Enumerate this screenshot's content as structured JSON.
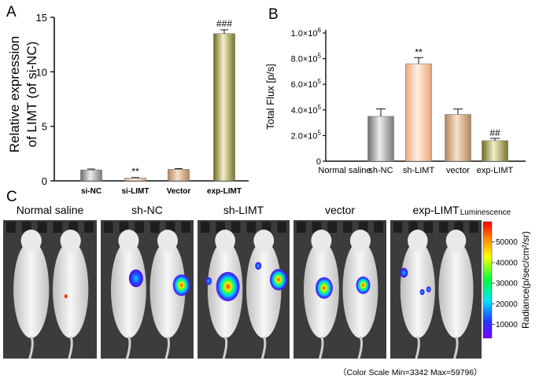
{
  "chart_data": [
    {
      "panel": "A",
      "type": "bar",
      "categories": [
        "si-NC",
        "si-LIMT",
        "Vector",
        "exp-LIMT"
      ],
      "values": [
        1.0,
        0.25,
        1.05,
        13.5
      ],
      "errors": [
        0.08,
        0.05,
        0.07,
        0.35
      ],
      "significance": [
        "",
        "**",
        "",
        "###"
      ],
      "colors": [
        "#a8a8a8",
        "#f4c7a6",
        "#d9b089",
        "#a7a24a"
      ],
      "ylabel_line1": "Relative  expression",
      "ylabel_line2": "of LIMT (of si-NC)",
      "ylim": [
        0,
        15
      ],
      "yticks": [
        "0",
        "5",
        "10",
        "15"
      ]
    },
    {
      "panel": "B",
      "type": "bar",
      "categories": [
        "Normal saline",
        "sh-NC",
        "sh-LIMT",
        "vector",
        "exp-LIMT"
      ],
      "values": [
        0,
        350000,
        760000,
        365000,
        160000
      ],
      "errors": [
        0,
        58000,
        48000,
        42000,
        18000
      ],
      "significance": [
        "",
        "",
        "**",
        "",
        "##"
      ],
      "colors": [
        "#ffffff",
        "#a3a3a3",
        "#f2b584",
        "#c99d72",
        "#a49e47"
      ],
      "ylabel": "Total Flux [p/s]",
      "ylim": [
        0,
        1000000
      ],
      "ytick_values": [
        0,
        200000,
        400000,
        600000,
        800000,
        1000000
      ],
      "ytick_labels": [
        {
          "m": "0",
          "e": ""
        },
        {
          "m": "2.0×10",
          "e": "5"
        },
        {
          "m": "4.0×10",
          "e": "5"
        },
        {
          "m": "6.0×10",
          "e": "5"
        },
        {
          "m": "8.0×10",
          "e": "5"
        },
        {
          "m": "1.0×10",
          "e": "6"
        }
      ]
    }
  ],
  "panel_labels": {
    "a": "A",
    "b": "B",
    "c": "C"
  },
  "imaging": {
    "groups": [
      "Normal saline",
      "sh-NC",
      "sh-LIMT",
      "vector",
      "exp-LIMT"
    ],
    "colorbar": {
      "title": "Luminescence",
      "ticks": [
        "50000",
        "40000",
        "30000",
        "20000",
        "10000"
      ],
      "tick_values": [
        50000,
        40000,
        30000,
        20000,
        10000
      ],
      "min": 3342,
      "max": 59796,
      "axis_label": "Radiance(p/sec/cm²/sr)",
      "colors": [
        "#ff0000",
        "#ff8c00",
        "#ffff00",
        "#00ff3c",
        "#00e5ff",
        "#1e3cff",
        "#7a00ff"
      ]
    },
    "scale_note": "（Color Scale Min=3342 Max=59796）"
  }
}
